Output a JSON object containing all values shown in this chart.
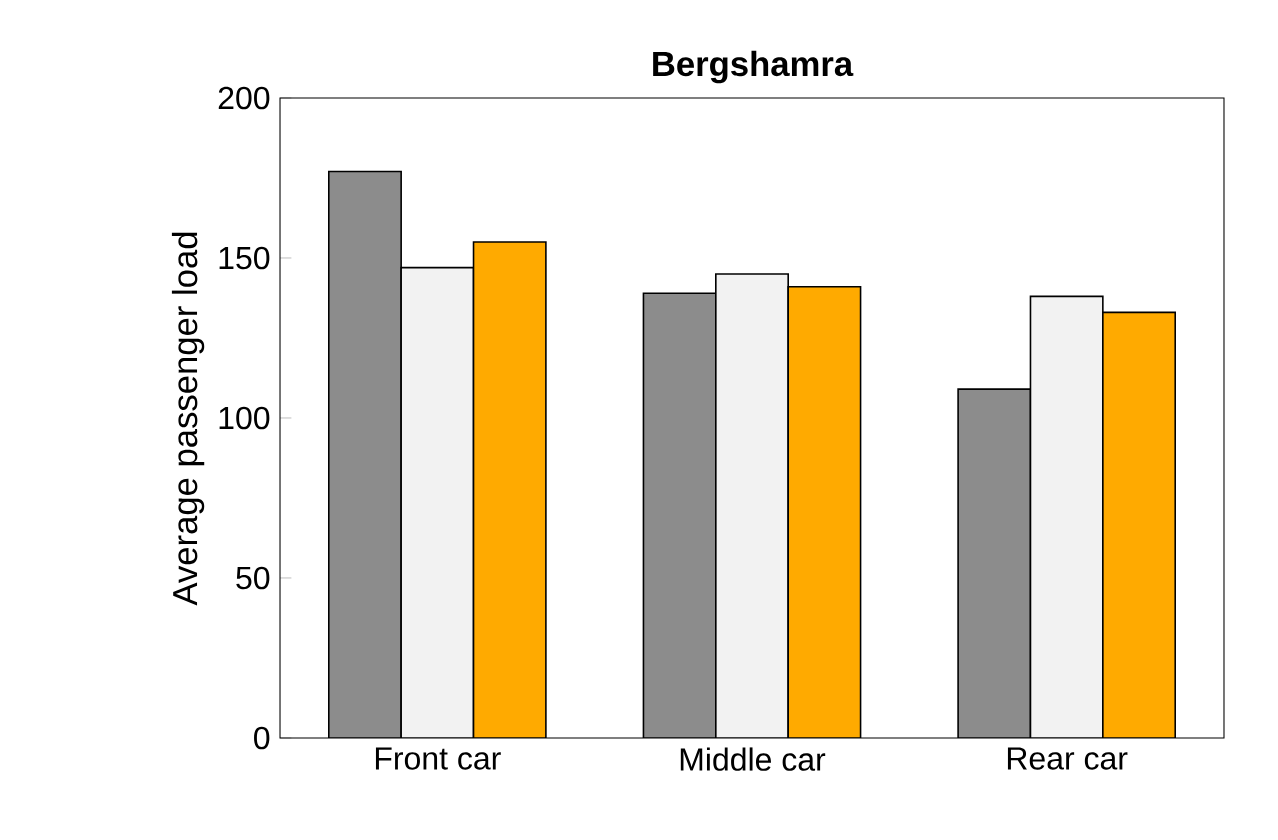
{
  "chart_data": {
    "type": "bar",
    "title": "Bergshamra",
    "ylabel": "Average passenger load",
    "categories": [
      "Front car",
      "Middle car",
      "Rear car"
    ],
    "series": [
      {
        "color": "#8c8c8c",
        "values": [
          177,
          139,
          109
        ]
      },
      {
        "color": "#f2f2f2",
        "values": [
          147,
          145,
          138
        ]
      },
      {
        "color": "#ffaa00",
        "values": [
          155,
          141,
          133
        ]
      }
    ],
    "ylim": [
      0,
      200
    ],
    "yticks": [
      0,
      50,
      100,
      150,
      200
    ]
  }
}
